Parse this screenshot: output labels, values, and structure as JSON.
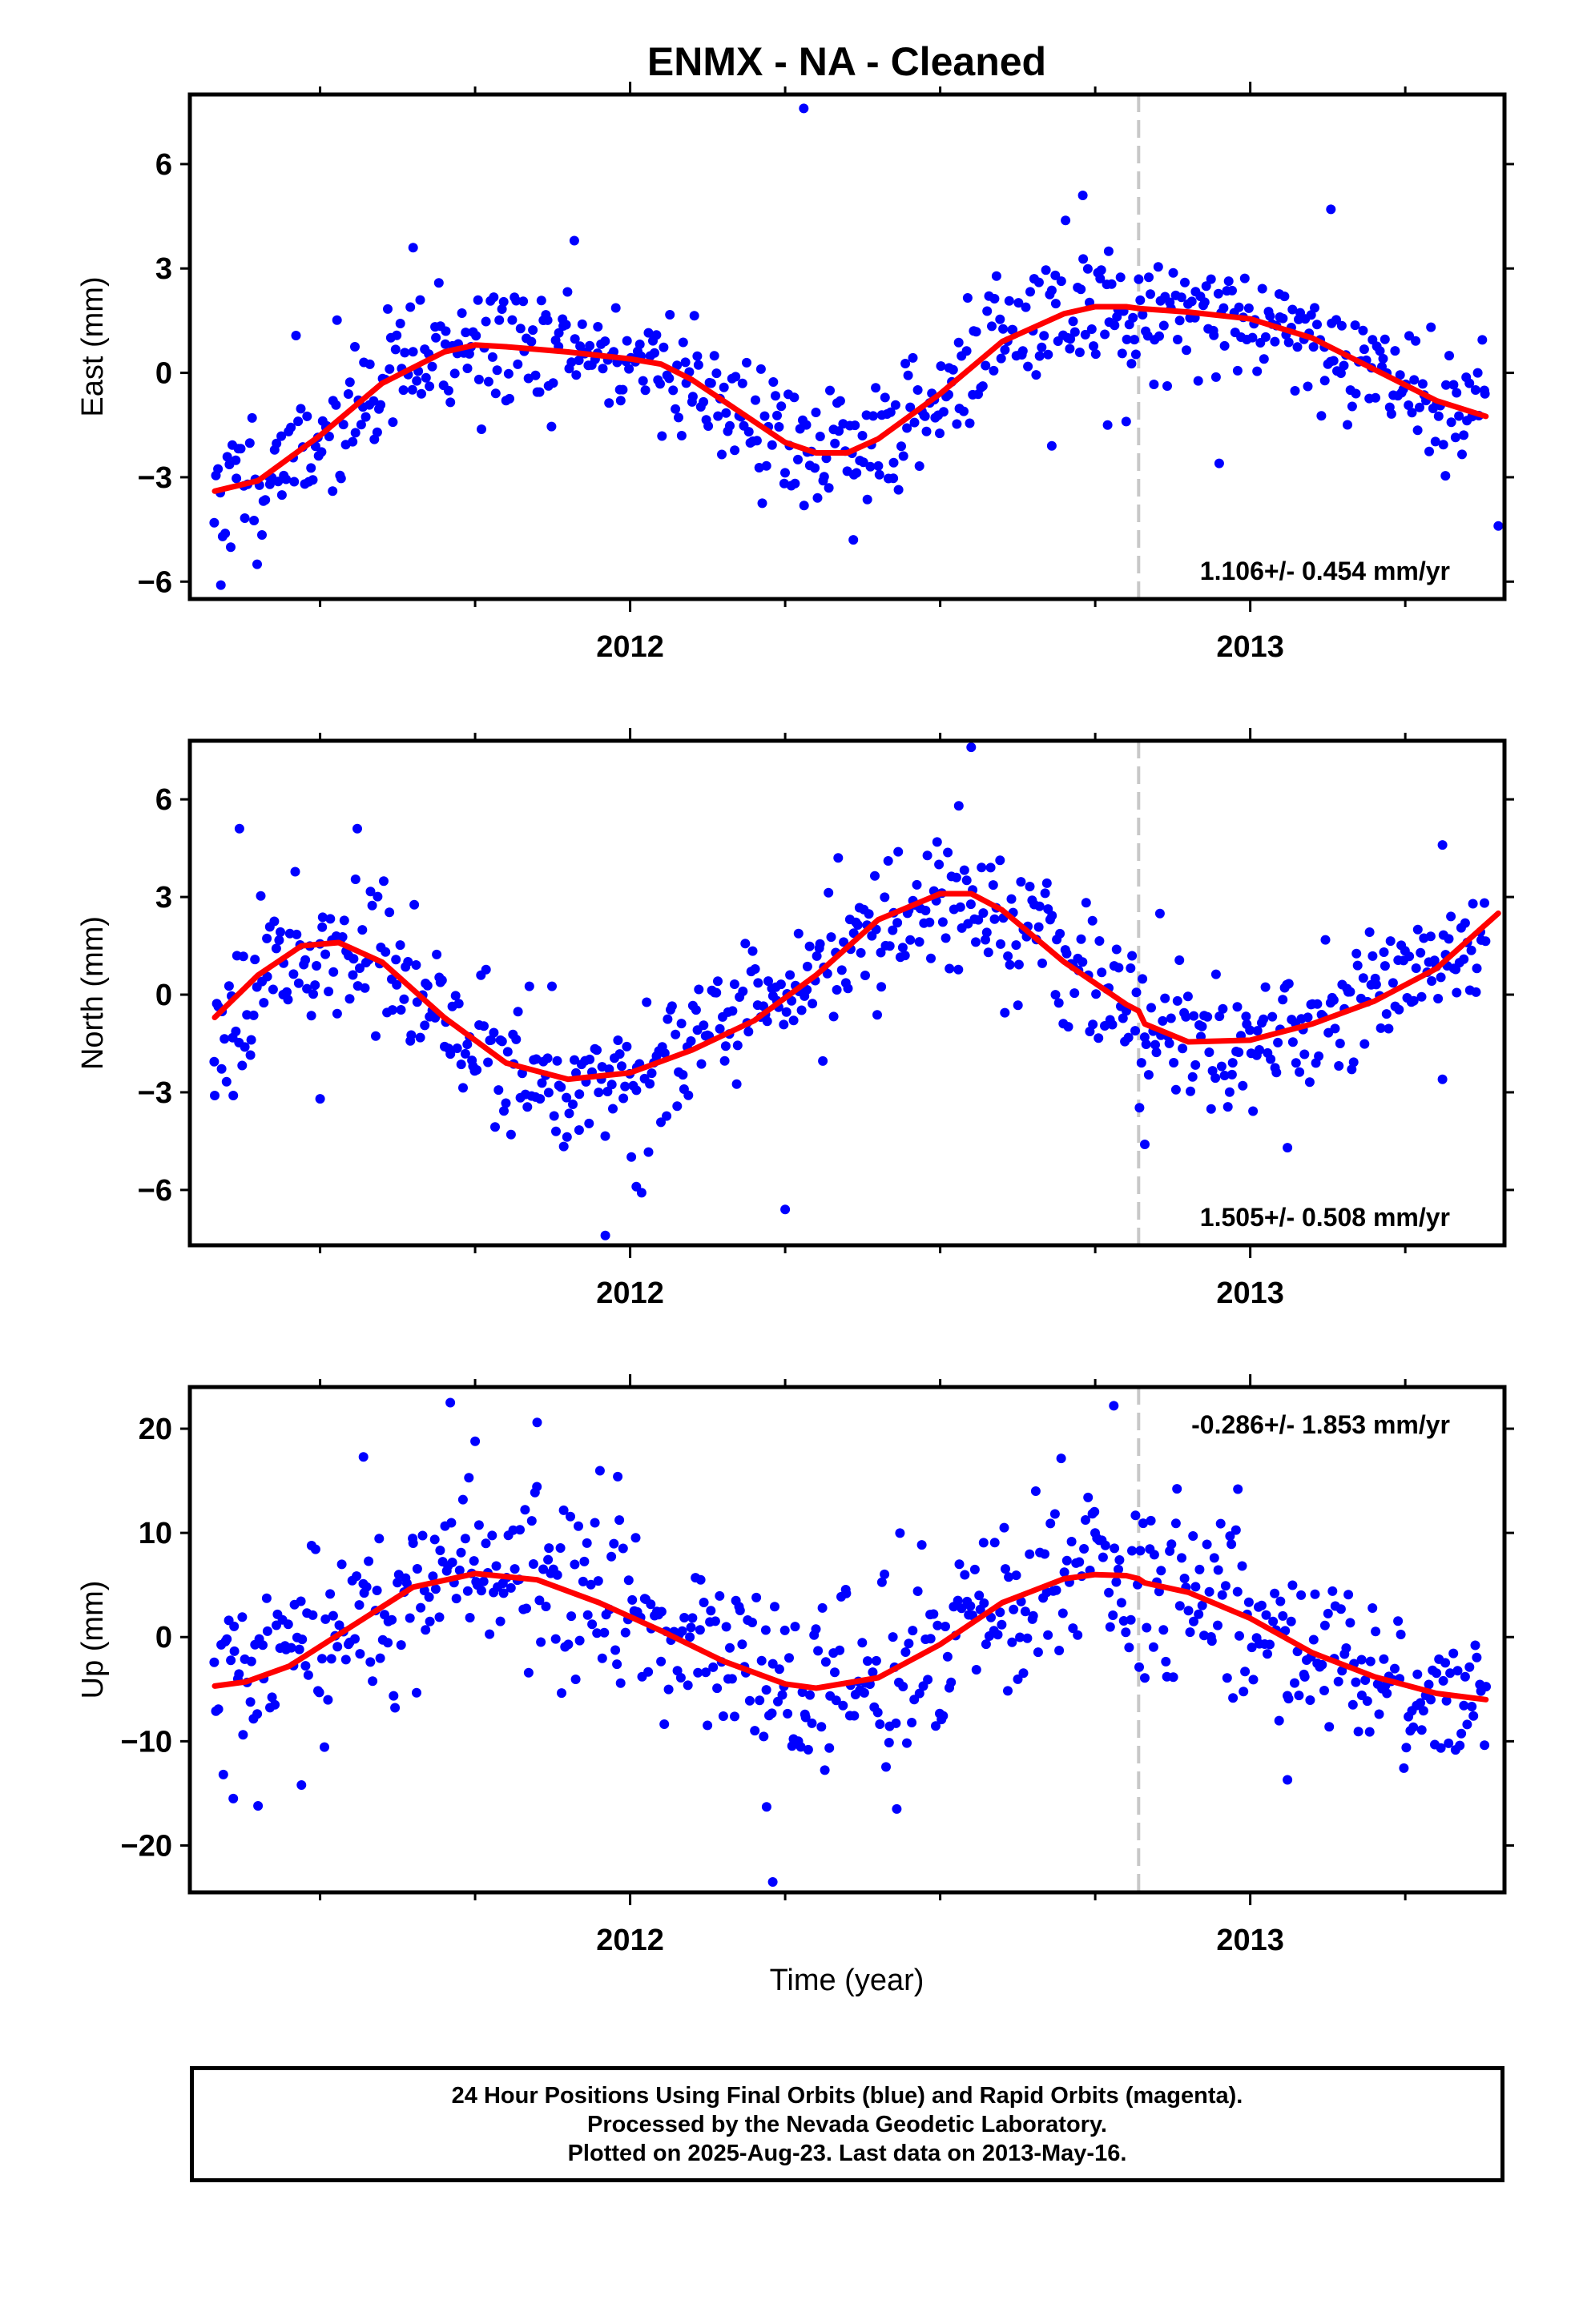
{
  "title": "ENMX  - NA - Cleaned",
  "xlabel": "Time (year)",
  "caption": {
    "line1": "24 Hour Positions Using Final Orbits (blue) and Rapid Orbits (magenta).",
    "line2": "Processed by the Nevada Geodetic Laboratory.",
    "line3": "Plotted on 2025-Aug-23. Last data on 2013-May-16."
  },
  "colors": {
    "points": "#0000ff",
    "fit": "#ff0000",
    "event_line": "#c8c8c8",
    "axes": "#000000"
  },
  "chart_data": [
    {
      "type": "scatter",
      "name": "east",
      "ylabel": "East (mm)",
      "ylim": [
        -6.5,
        8.0
      ],
      "yticks": [
        6,
        3,
        0,
        -3,
        -6
      ],
      "xlim": [
        2011.29,
        2013.41
      ],
      "xticks_major": [
        2012,
        2013
      ],
      "xticks_minor": [
        2011.5,
        2011.75,
        2012.25,
        2012.5,
        2012.75,
        2013.25
      ],
      "event_line_x": 2012.82,
      "rate_text": "1.106+/- 0.454 mm/yr",
      "rate_pos": "bottom-right",
      "fit_x": [
        2011.33,
        2011.4,
        2011.5,
        2011.6,
        2011.7,
        2011.75,
        2011.8,
        2011.9,
        2012.0,
        2012.05,
        2012.1,
        2012.2,
        2012.25,
        2012.3,
        2012.35,
        2012.4,
        2012.5,
        2012.6,
        2012.7,
        2012.75,
        2012.8,
        2012.82,
        2012.9,
        2013.0,
        2013.1,
        2013.2,
        2013.3,
        2013.38
      ],
      "fit_y": [
        -3.4,
        -3.1,
        -1.8,
        -0.3,
        0.6,
        0.8,
        0.75,
        0.6,
        0.4,
        0.25,
        -0.2,
        -1.4,
        -2.0,
        -2.3,
        -2.3,
        -1.9,
        -0.6,
        0.9,
        1.7,
        1.9,
        1.9,
        1.85,
        1.75,
        1.55,
        1.0,
        0.1,
        -0.8,
        -1.25
      ],
      "anchors_x": [
        2011.33,
        2011.4,
        2011.5,
        2011.6,
        2011.7,
        2011.75,
        2011.8,
        2011.9,
        2012.0,
        2012.05,
        2012.1,
        2012.2,
        2012.25,
        2012.3,
        2012.35,
        2012.4,
        2012.5,
        2012.6,
        2012.7,
        2012.75,
        2012.8,
        2012.82,
        2012.9,
        2013.0,
        2013.1,
        2013.2,
        2013.3,
        2013.38
      ],
      "anchors_y": [
        -3.4,
        -3.1,
        -1.8,
        -0.3,
        0.6,
        0.8,
        0.75,
        0.6,
        0.4,
        0.25,
        -0.2,
        -1.4,
        -2.0,
        -2.3,
        -2.3,
        -1.9,
        -0.6,
        0.9,
        1.7,
        1.9,
        1.9,
        1.85,
        1.75,
        1.55,
        1.0,
        0.1,
        -0.8,
        -1.25
      ],
      "scatter_sigma": 0.95,
      "seed": 11,
      "outliers": [
        {
          "x": 2012.28,
          "y": 7.6
        },
        {
          "x": 2011.34,
          "y": -6.1
        },
        {
          "x": 2012.36,
          "y": -4.8
        },
        {
          "x": 2013.4,
          "y": -4.4
        },
        {
          "x": 2012.73,
          "y": 5.1
        },
        {
          "x": 2013.13,
          "y": 4.7
        },
        {
          "x": 2012.77,
          "y": -1.5
        },
        {
          "x": 2012.8,
          "y": -1.4
        },
        {
          "x": 2012.68,
          "y": -2.1
        },
        {
          "x": 2012.95,
          "y": -2.6
        },
        {
          "x": 2011.91,
          "y": 3.8
        },
        {
          "x": 2011.65,
          "y": 3.6
        }
      ]
    },
    {
      "type": "scatter",
      "name": "north",
      "ylabel": "North (mm)",
      "ylim": [
        -7.7,
        7.8
      ],
      "yticks": [
        6,
        3,
        0,
        -3,
        -6
      ],
      "xlim": [
        2011.29,
        2013.41
      ],
      "xticks_major": [
        2012,
        2013
      ],
      "xticks_minor": [
        2011.5,
        2011.75,
        2012.25,
        2012.5,
        2012.75,
        2013.25
      ],
      "event_line_x": 2012.82,
      "rate_text": "1.505+/- 0.508 mm/yr",
      "rate_pos": "bottom-right",
      "fit_x": [
        2011.33,
        2011.4,
        2011.47,
        2011.53,
        2011.6,
        2011.7,
        2011.8,
        2011.9,
        2012.0,
        2012.1,
        2012.2,
        2012.3,
        2012.4,
        2012.5,
        2012.55,
        2012.6,
        2012.7,
        2012.8,
        2012.82,
        2012.83,
        2012.9,
        2013.0,
        2013.1,
        2013.2,
        2013.3,
        2013.4
      ],
      "fit_y": [
        -0.7,
        0.6,
        1.5,
        1.6,
        1.0,
        -0.7,
        -2.1,
        -2.6,
        -2.4,
        -1.7,
        -0.8,
        0.6,
        2.3,
        3.1,
        3.1,
        2.6,
        1.0,
        -0.3,
        -0.5,
        -0.9,
        -1.45,
        -1.4,
        -0.9,
        -0.2,
        0.8,
        2.5
      ],
      "anchors_x": [
        2011.33,
        2011.4,
        2011.47,
        2011.53,
        2011.6,
        2011.7,
        2011.8,
        2011.9,
        2012.0,
        2012.1,
        2012.2,
        2012.3,
        2012.4,
        2012.5,
        2012.55,
        2012.6,
        2012.7,
        2012.8,
        2012.82,
        2012.83,
        2012.9,
        2013.0,
        2013.1,
        2013.2,
        2013.3,
        2013.4
      ],
      "anchors_y": [
        -0.7,
        0.6,
        1.5,
        1.6,
        1.0,
        -0.7,
        -2.1,
        -2.6,
        -2.4,
        -1.7,
        -0.8,
        0.6,
        2.3,
        3.1,
        3.1,
        2.6,
        1.0,
        -0.3,
        -0.5,
        -0.9,
        -1.45,
        -1.4,
        -0.9,
        -0.2,
        0.8,
        2.5
      ],
      "scatter_sigma": 1.05,
      "seed": 23,
      "outliers": [
        {
          "x": 2012.55,
          "y": 7.6
        },
        {
          "x": 2011.96,
          "y": -7.4
        },
        {
          "x": 2012.25,
          "y": -6.6
        },
        {
          "x": 2011.37,
          "y": 5.1
        },
        {
          "x": 2011.56,
          "y": 5.1
        },
        {
          "x": 2012.53,
          "y": 5.8
        },
        {
          "x": 2011.33,
          "y": -3.1
        },
        {
          "x": 2011.36,
          "y": -3.1
        },
        {
          "x": 2011.5,
          "y": -3.2
        },
        {
          "x": 2012.01,
          "y": -5.9
        },
        {
          "x": 2013.06,
          "y": -4.7
        },
        {
          "x": 2013.31,
          "y": 4.6
        },
        {
          "x": 2012.83,
          "y": -4.6
        },
        {
          "x": 2013.31,
          "y": -2.6
        }
      ]
    },
    {
      "type": "scatter",
      "name": "up",
      "ylabel": "Up (mm)",
      "ylim": [
        -24.5,
        24.0
      ],
      "yticks": [
        20,
        10,
        0,
        -10,
        -20
      ],
      "xlim": [
        2011.29,
        2013.41
      ],
      "xticks_major": [
        2012,
        2013
      ],
      "xticks_minor": [
        2011.5,
        2011.75,
        2012.25,
        2012.5,
        2012.75,
        2013.25
      ],
      "event_line_x": 2012.82,
      "rate_text": "-0.286+/- 1.853 mm/yr",
      "rate_pos": "top-right",
      "fit_x": [
        2011.33,
        2011.38,
        2011.45,
        2011.55,
        2011.65,
        2011.75,
        2011.85,
        2011.95,
        2012.05,
        2012.15,
        2012.25,
        2012.3,
        2012.4,
        2012.5,
        2012.6,
        2012.7,
        2012.75,
        2012.8,
        2012.82,
        2012.83,
        2012.9,
        2013.0,
        2013.1,
        2013.2,
        2013.3,
        2013.38
      ],
      "fit_y": [
        -4.7,
        -4.3,
        -2.8,
        1.0,
        4.8,
        6.1,
        5.5,
        3.3,
        0.6,
        -2.3,
        -4.5,
        -4.9,
        -3.9,
        -0.7,
        3.3,
        5.6,
        6.0,
        5.9,
        5.6,
        5.2,
        4.3,
        1.8,
        -1.5,
        -3.8,
        -5.4,
        -6.0
      ],
      "anchors_x": [
        2011.33,
        2011.38,
        2011.45,
        2011.55,
        2011.65,
        2011.75,
        2011.85,
        2011.95,
        2012.05,
        2012.15,
        2012.25,
        2012.3,
        2012.4,
        2012.5,
        2012.6,
        2012.7,
        2012.75,
        2012.8,
        2012.82,
        2012.83,
        2012.9,
        2013.0,
        2013.1,
        2013.2,
        2013.3,
        2013.38
      ],
      "anchors_y": [
        -4.7,
        -4.3,
        -2.8,
        1.0,
        4.8,
        6.1,
        5.5,
        3.3,
        0.6,
        -2.3,
        -4.5,
        -4.9,
        -3.9,
        -0.7,
        3.3,
        5.6,
        6.0,
        5.9,
        5.6,
        5.2,
        4.3,
        1.8,
        -1.5,
        -3.8,
        -5.4,
        -6.0
      ],
      "scatter_sigma": 4.2,
      "seed": 37,
      "outliers": [
        {
          "x": 2011.71,
          "y": 22.5
        },
        {
          "x": 2012.78,
          "y": 22.2
        },
        {
          "x": 2011.75,
          "y": 18.8
        },
        {
          "x": 2011.85,
          "y": 20.6
        },
        {
          "x": 2011.57,
          "y": 17.3
        },
        {
          "x": 2012.23,
          "y": -23.5
        },
        {
          "x": 2012.22,
          "y": -16.3
        },
        {
          "x": 2012.43,
          "y": -16.5
        },
        {
          "x": 2011.4,
          "y": -16.2
        },
        {
          "x": 2011.36,
          "y": -15.5
        },
        {
          "x": 2011.47,
          "y": -14.2
        },
        {
          "x": 2013.06,
          "y": -13.7
        },
        {
          "x": 2012.98,
          "y": 14.2
        },
        {
          "x": 2011.98,
          "y": 15.4
        },
        {
          "x": 2011.74,
          "y": 15.3
        }
      ]
    }
  ]
}
